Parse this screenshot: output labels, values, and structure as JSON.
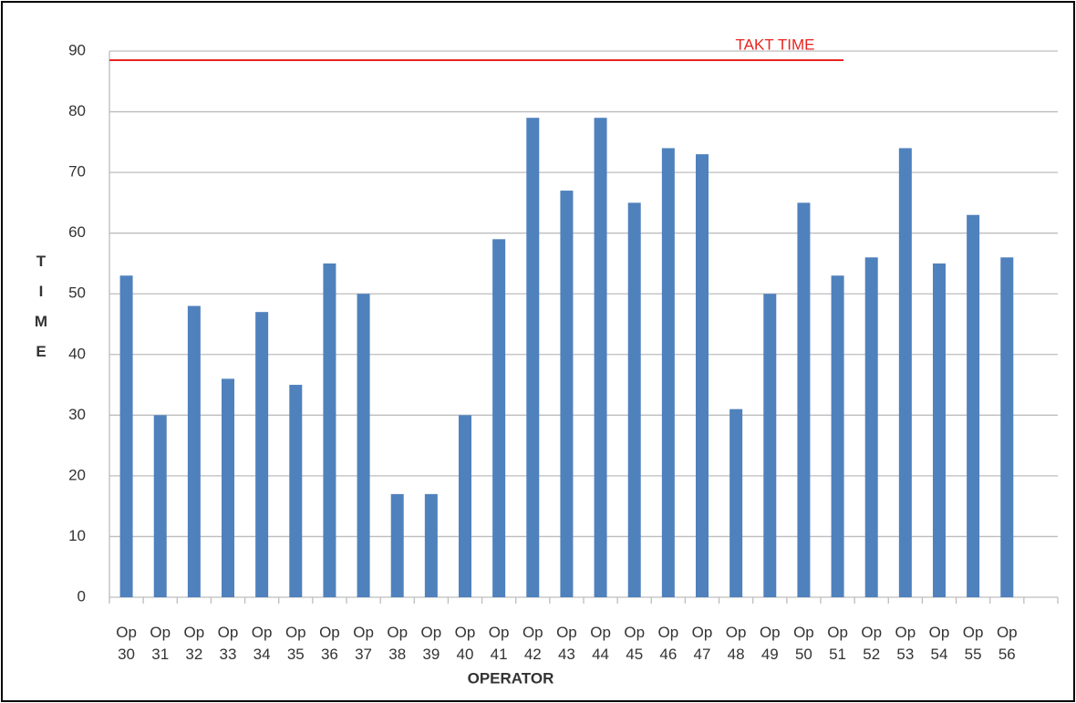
{
  "chart_data": {
    "type": "bar",
    "categories": [
      "Op 30",
      "Op 31",
      "Op 32",
      "Op 33",
      "Op 34",
      "Op 35",
      "Op 36",
      "Op 37",
      "Op 38",
      "Op 39",
      "Op 40",
      "Op 41",
      "Op 42",
      "Op 43",
      "Op 44",
      "Op 45",
      "Op 46",
      "Op 47",
      "Op 48",
      "Op 49",
      "Op 50",
      "Op 51",
      "Op 52",
      "Op 53",
      "Op 54",
      "Op 55",
      "Op 56",
      null
    ],
    "values": [
      53,
      30,
      48,
      36,
      47,
      35,
      55,
      50,
      17,
      17,
      30,
      59,
      79,
      67,
      79,
      65,
      74,
      73,
      31,
      50,
      65,
      53,
      56,
      74,
      55,
      63,
      56,
      null
    ],
    "color": "#4f81bd",
    "ylim": [
      0,
      90
    ],
    "yticks": [
      0,
      10,
      20,
      30,
      40,
      50,
      60,
      70,
      80,
      90
    ],
    "grid": true,
    "y_label": "TIME",
    "x_label": "OPERATOR",
    "annotations": [
      {
        "text": "TAKT TIME",
        "value": 88.5,
        "color": "#e8241f"
      }
    ]
  }
}
